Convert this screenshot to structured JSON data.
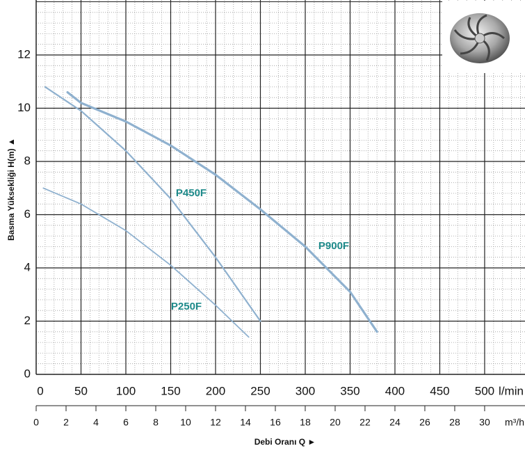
{
  "chart_data": {
    "type": "line",
    "xlabel": "Debi Oranı Q ►",
    "ylabel": "Basma Yüksekliği H(m) ▲",
    "xunit": "l/min",
    "x2unit": "m³/h",
    "xlim": [
      0,
      545
    ],
    "xticks": [
      0,
      50,
      100,
      150,
      200,
      250,
      300,
      350,
      400,
      450,
      500
    ],
    "x2lim": [
      0,
      32.7
    ],
    "x2ticks": [
      0,
      2,
      4,
      6,
      8,
      10,
      12,
      14,
      16,
      18,
      20,
      22,
      24,
      26,
      28,
      30
    ],
    "ylim": [
      0,
      14
    ],
    "yticks": [
      0,
      2,
      4,
      6,
      8,
      10,
      12
    ],
    "grid": true,
    "minor_divisions": 5,
    "series": [
      {
        "name": "P900F",
        "color": "#8fb1cf",
        "x": [
          35,
          50,
          100,
          150,
          200,
          250,
          300,
          350,
          380
        ],
        "values": [
          10.6,
          10.2,
          9.5,
          8.6,
          7.5,
          6.2,
          4.8,
          3.1,
          1.6
        ]
      },
      {
        "name": "P450F",
        "color": "#8fb1cf",
        "x": [
          10,
          50,
          100,
          150,
          200,
          250
        ],
        "values": [
          10.8,
          9.9,
          8.4,
          6.6,
          4.4,
          2.0
        ]
      },
      {
        "name": "P250F",
        "color": "#8fb1cf",
        "x": [
          8,
          50,
          100,
          150,
          200,
          237
        ],
        "values": [
          7.0,
          6.4,
          5.4,
          4.1,
          2.6,
          1.4
        ]
      }
    ]
  }
}
